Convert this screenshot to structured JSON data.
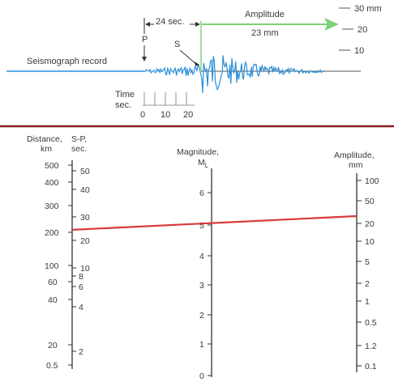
{
  "record": {
    "label": "Seismograph record",
    "p_label": "P",
    "s_label": "S",
    "interval_label": "24 sec.",
    "amplitude_title": "Amplitude",
    "amplitude_value": "23 mm",
    "time_label_1": "Time",
    "time_label_2": "sec.",
    "time_ticks": [
      "0",
      "10",
      "20"
    ],
    "amp_scale_ticks": [
      "30 mm",
      "20",
      "10"
    ]
  },
  "nomogram": {
    "distance_header": [
      "Distance,",
      "km"
    ],
    "sp_header": [
      "S-P,",
      "sec."
    ],
    "magnitude_header": [
      "Magnitude,",
      "ML"
    ],
    "amplitude_header": [
      "Amplitude,",
      "mm"
    ],
    "distance_ticks": [
      {
        "v": "500"
      },
      {
        "v": "400"
      },
      {
        "v": "300"
      },
      {
        "v": "200"
      },
      {
        "v": "100"
      },
      {
        "v": "60"
      },
      {
        "v": "40"
      },
      {
        "v": "20"
      },
      {
        "v": "0.5"
      }
    ],
    "sp_ticks": [
      {
        "v": "50"
      },
      {
        "v": "40"
      },
      {
        "v": "30"
      },
      {
        "v": "20"
      },
      {
        "v": "10"
      },
      {
        "v": "8"
      },
      {
        "v": "6"
      },
      {
        "v": "4"
      },
      {
        "v": "2"
      }
    ],
    "magnitude_ticks": [
      {
        "v": "6"
      },
      {
        "v": "5"
      },
      {
        "v": "4"
      },
      {
        "v": "3"
      },
      {
        "v": "2"
      },
      {
        "v": "1"
      },
      {
        "v": "0"
      }
    ],
    "amplitude_ticks": [
      {
        "v": "100"
      },
      {
        "v": "50"
      },
      {
        "v": "20"
      },
      {
        "v": "10"
      },
      {
        "v": "5"
      },
      {
        "v": "2"
      },
      {
        "v": "1"
      },
      {
        "v": "0.5"
      },
      {
        "v": "1.2"
      },
      {
        "v": "0.1"
      }
    ]
  },
  "colors": {
    "trace": "#2a8fd8",
    "arrow": "#7ed27a",
    "divider": "#8b1e1e",
    "reading_line": "#d63a3a"
  }
}
